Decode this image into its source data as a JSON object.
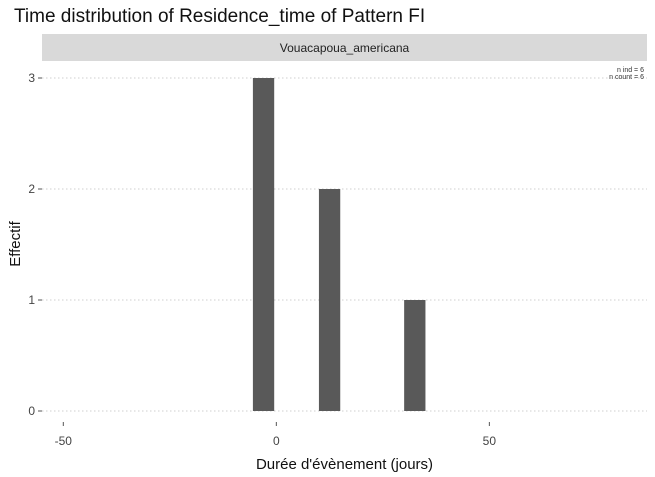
{
  "chart_data": {
    "type": "bar",
    "title": "Time distribution of Residence_time of Pattern FI",
    "facet_label": "Vouacapoua_americana",
    "xlabel": "Durée d'évènement (jours)",
    "ylabel": "Effectif",
    "xlim": [
      -55,
      87
    ],
    "ylim": [
      0,
      3.06
    ],
    "x_ticks": [
      -50,
      0,
      50
    ],
    "y_ticks": [
      0,
      1,
      2,
      3
    ],
    "grid": true,
    "bar_width": 5,
    "bar_color": "#595959",
    "strip_color": "#d9d9d9",
    "grid_color": "#cfcfcf",
    "x": [
      -3,
      12.5,
      32.5
    ],
    "values": [
      3,
      2,
      1
    ],
    "annotations": {
      "n_ind": "n ind =  6",
      "n_count": "n count =  6"
    }
  }
}
